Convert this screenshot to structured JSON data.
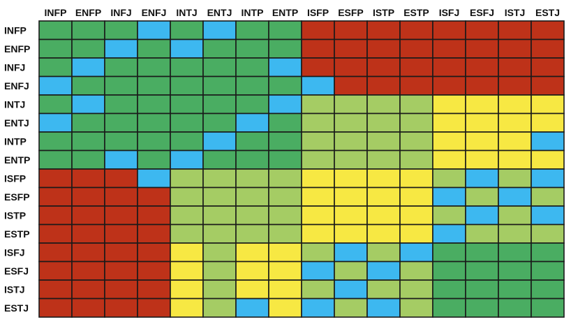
{
  "chart_data": {
    "type": "heatmap",
    "title": "",
    "xlabel": "",
    "ylabel": "",
    "legend": "none",
    "grid": true,
    "columns": [
      "INFP",
      "ENFP",
      "INFJ",
      "ENFJ",
      "INTJ",
      "ENTJ",
      "INTP",
      "ENTP",
      "ISFP",
      "ESFP",
      "ISTP",
      "ESTP",
      "ISFJ",
      "ESFJ",
      "ISTJ",
      "ESTJ"
    ],
    "rows": [
      "INFP",
      "ENFP",
      "INFJ",
      "ENFJ",
      "INTJ",
      "ENTJ",
      "INTP",
      "ENTP",
      "ISFP",
      "ESFP",
      "ISTP",
      "ESTP",
      "ISFJ",
      "ESFJ",
      "ISTJ",
      "ESTJ"
    ],
    "palette": {
      "B": "#3db8f0",
      "G": "#4aad62",
      "L": "#a5cc64",
      "Y": "#f7e843",
      "R": "#be3219"
    },
    "matrix": [
      "GGGBGBGGRRRRRRRR",
      "GGBGBGGGRRRRRRRR",
      "GBGGGGGBRRRRRRRR",
      "BGGGGGGGBRRRRRRR",
      "GBGGGGGBLLLLYYYY",
      "BGGGGGBGLLLLYYYY",
      "GGGGGBGGLLLLYYYB",
      "GGBGBGGGLLLLYYYY",
      "RRRBLLLLYYYYLBLB",
      "RRRRLLLLYYYYBLBL",
      "RRRRLLLLYYYYLBLB",
      "RRRRLLLLYYYYBLLL",
      "RRRRYLYYLBLBGGGG",
      "RRRRYLYYBLBLGGGG",
      "RRRRYLYYLBLLGGGG",
      "RRRRYLBYBLBLGGGG"
    ]
  }
}
